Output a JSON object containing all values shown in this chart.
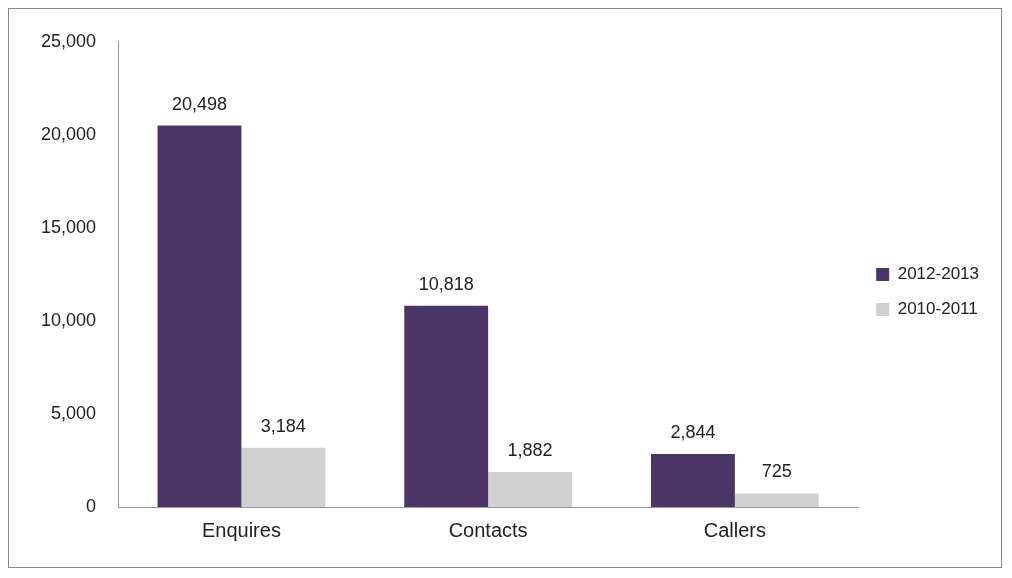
{
  "chart_data": {
    "type": "bar",
    "categories": [
      "Enquires",
      "Contacts",
      "Callers"
    ],
    "series": [
      {
        "name": "2012-2013",
        "color": "#4b3466",
        "values": [
          20498,
          10818,
          2844
        ],
        "value_labels": [
          "20,498",
          "10,818",
          "2,844"
        ]
      },
      {
        "name": "2010-2011",
        "color": "#d0d0d0",
        "values": [
          3184,
          1882,
          725
        ],
        "value_labels": [
          "3,184",
          "1,882",
          "725"
        ]
      }
    ],
    "ylim": [
      0,
      25000
    ],
    "yticks": [
      {
        "value": 0,
        "label": "0"
      },
      {
        "value": 5000,
        "label": "5,000"
      },
      {
        "value": 10000,
        "label": "10,000"
      },
      {
        "value": 15000,
        "label": "15,000"
      },
      {
        "value": 20000,
        "label": "20,000"
      },
      {
        "value": 25000,
        "label": "25,000"
      }
    ],
    "legend": "right",
    "grid": false
  }
}
